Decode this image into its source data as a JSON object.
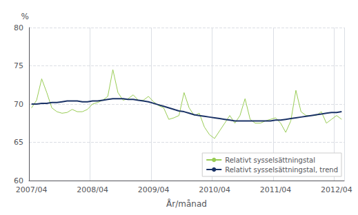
{
  "chart_data": {
    "type": "line",
    "xlabel": "År/månad",
    "ylabel": "%",
    "categories": [
      "2007/04",
      null,
      null,
      null,
      null,
      null,
      null,
      null,
      null,
      null,
      null,
      null,
      "2008/04",
      null,
      null,
      null,
      null,
      null,
      null,
      null,
      null,
      null,
      null,
      null,
      "2009/04",
      null,
      null,
      null,
      null,
      null,
      null,
      null,
      null,
      null,
      null,
      null,
      "2010/04",
      null,
      null,
      null,
      null,
      null,
      null,
      null,
      null,
      null,
      null,
      null,
      "2011/04",
      null,
      null,
      null,
      null,
      null,
      null,
      null,
      null,
      null,
      null,
      null,
      "2012/04",
      null
    ],
    "series": [
      {
        "name": "Relativt sysselsättningstal",
        "color": "#99cc55",
        "values": [
          69.5,
          70.5,
          73.3,
          71.5,
          69.5,
          69.0,
          68.8,
          68.9,
          69.3,
          69.0,
          69.0,
          69.3,
          70.0,
          70.2,
          70.5,
          71.0,
          74.5,
          71.5,
          70.5,
          70.7,
          71.2,
          70.5,
          70.5,
          71.0,
          70.3,
          69.8,
          69.5,
          68.0,
          68.2,
          68.5,
          71.5,
          69.5,
          68.5,
          68.8,
          67.0,
          66.0,
          65.5,
          66.5,
          67.5,
          68.5,
          67.5,
          68.5,
          70.7,
          68.0,
          67.5,
          67.5,
          67.8,
          68.0,
          68.2,
          67.5,
          66.3,
          67.8,
          71.8,
          69.0,
          68.5,
          68.5,
          68.5,
          69.0,
          67.5,
          68.0,
          68.5,
          68.0
        ]
      },
      {
        "name": "Relativt sysselsättningstal, trend",
        "color": "#1a3266",
        "values": [
          70.0,
          70.0,
          70.1,
          70.1,
          70.2,
          70.2,
          70.3,
          70.4,
          70.4,
          70.4,
          70.3,
          70.3,
          70.4,
          70.4,
          70.5,
          70.6,
          70.7,
          70.7,
          70.7,
          70.6,
          70.6,
          70.5,
          70.4,
          70.3,
          70.1,
          69.9,
          69.7,
          69.5,
          69.3,
          69.1,
          69.0,
          68.8,
          68.6,
          68.5,
          68.4,
          68.3,
          68.2,
          68.1,
          68.0,
          67.9,
          67.8,
          67.8,
          67.8,
          67.8,
          67.8,
          67.8,
          67.8,
          67.8,
          67.9,
          67.9,
          68.0,
          68.1,
          68.2,
          68.3,
          68.4,
          68.5,
          68.6,
          68.7,
          68.8,
          68.9,
          68.9,
          69.0
        ]
      }
    ],
    "ylim": [
      60,
      80
    ],
    "yticks": [
      60,
      65,
      70,
      75,
      80
    ],
    "grid": true,
    "legend": "lower right"
  }
}
